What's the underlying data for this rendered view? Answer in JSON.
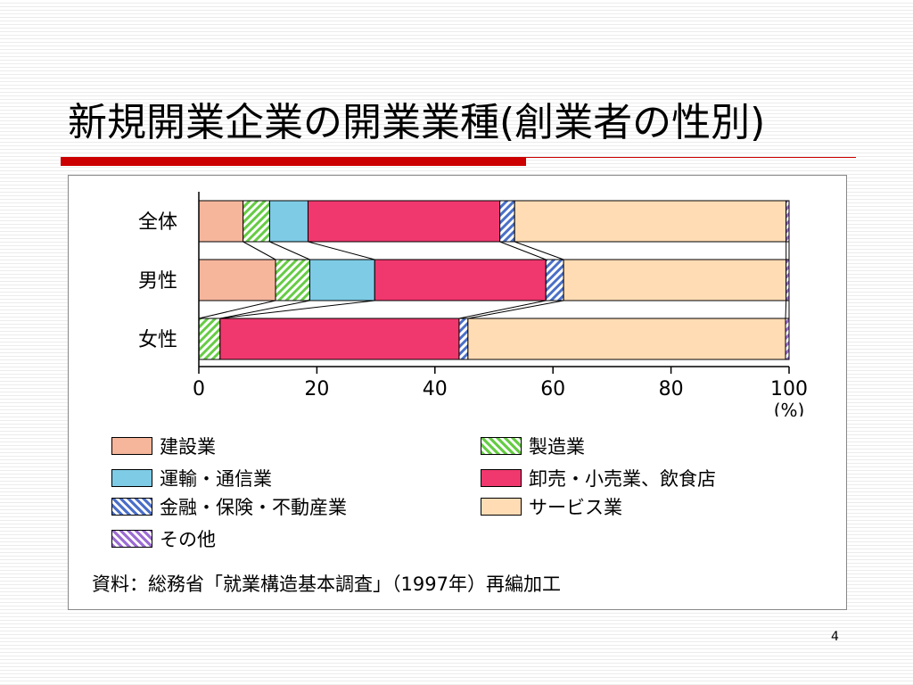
{
  "slide": {
    "title": "新規開業企業の開業業種(創業者の性別)",
    "page_number": "4",
    "source": "資料：総務省「就業構造基本調査」（1997年）再編加工"
  },
  "chart_data": {
    "type": "bar",
    "orientation": "horizontal",
    "stacked": true,
    "categories": [
      "全体",
      "男性",
      "女性"
    ],
    "xlim": [
      0,
      100
    ],
    "xticks": [
      "0",
      "20",
      "40",
      "60",
      "80",
      "100"
    ],
    "xunit": "(%)",
    "grid": false,
    "legend_position": "bottom",
    "series": [
      {
        "name": "建設業",
        "color": "#f6b69c",
        "pattern": "solid",
        "values": [
          7.5,
          13,
          0
        ]
      },
      {
        "name": "製造業",
        "color": "#66cc44",
        "pattern": "hatch",
        "values": [
          4.5,
          5.8,
          3.6
        ]
      },
      {
        "name": "運輸・通信業",
        "color": "#7ecbe6",
        "pattern": "solid",
        "values": [
          6.5,
          11,
          0
        ]
      },
      {
        "name": "卸売・小売業、飲食店",
        "color": "#f0386e",
        "pattern": "solid",
        "values": [
          32.5,
          29,
          40.5
        ]
      },
      {
        "name": "金融・保険・不動産業",
        "color": "#4a6fc8",
        "pattern": "hatch",
        "values": [
          2.5,
          3,
          1.5
        ]
      },
      {
        "name": "サービス業",
        "color": "#ffdcb4",
        "pattern": "solid",
        "values": [
          46,
          37.7,
          53.8
        ]
      },
      {
        "name": "その他",
        "color": "#9b6bd2",
        "pattern": "hatch",
        "values": [
          0.5,
          0.5,
          0.6
        ]
      }
    ]
  }
}
